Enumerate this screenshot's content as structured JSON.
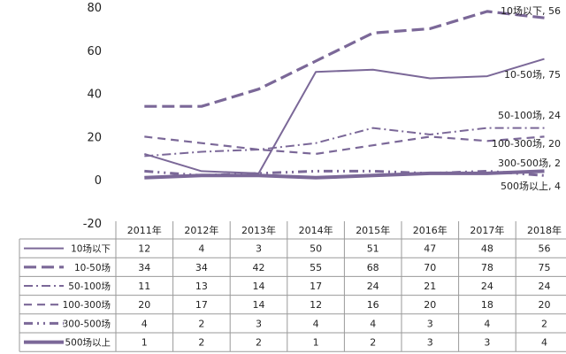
{
  "chart_data": {
    "type": "line",
    "categories": [
      "2011年",
      "2012年",
      "2013年",
      "2014年",
      "2015年",
      "2016年",
      "2017年",
      "2018年"
    ],
    "ylim": [
      -20,
      80
    ],
    "yticks": [
      "-20",
      "0",
      "20",
      "40",
      "60",
      "80"
    ],
    "grid": false,
    "legend": "data-table",
    "series": [
      {
        "name": "10场以下",
        "values": [
          12,
          4,
          3,
          50,
          51,
          47,
          48,
          56
        ],
        "label": "10场以下, 56",
        "style": "solid"
      },
      {
        "name": "10-50场",
        "values": [
          34,
          34,
          42,
          55,
          68,
          70,
          78,
          75
        ],
        "label": "10-50场, 75",
        "style": "longdash"
      },
      {
        "name": "50-100场",
        "values": [
          11,
          13,
          14,
          17,
          24,
          21,
          24,
          24
        ],
        "label": "50-100场, 24",
        "style": "dashdot"
      },
      {
        "name": "100-300场",
        "values": [
          20,
          17,
          14,
          12,
          16,
          20,
          18,
          20
        ],
        "label": "100-300场, 20",
        "style": "dash"
      },
      {
        "name": "300-500场",
        "values": [
          4,
          2,
          3,
          4,
          4,
          3,
          4,
          2
        ],
        "label": "300-500场, 2",
        "style": "dashdotdot"
      },
      {
        "name": "500场以上",
        "values": [
          1,
          2,
          2,
          1,
          2,
          3,
          3,
          4
        ],
        "label": "500场以上, 4",
        "style": "thick"
      }
    ],
    "color": "#7b6898"
  }
}
